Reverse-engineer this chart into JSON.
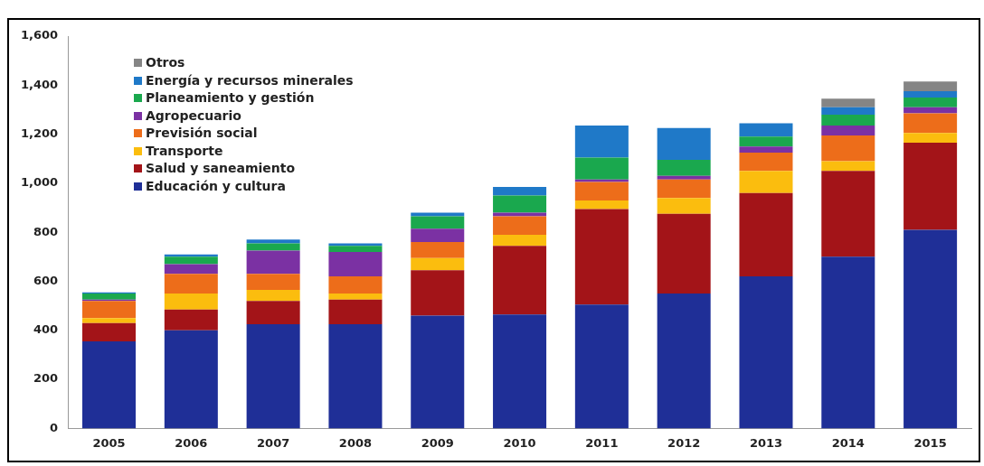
{
  "chart_data": {
    "type": "bar",
    "stacked": true,
    "categories": [
      "2005",
      "2006",
      "2007",
      "2008",
      "2009",
      "2010",
      "2011",
      "2012",
      "2013",
      "2014",
      "2015"
    ],
    "series": [
      {
        "name": "Educación y cultura",
        "color": "#1f2f97",
        "values": [
          355,
          400,
          425,
          425,
          460,
          465,
          505,
          550,
          620,
          700,
          810
        ]
      },
      {
        "name": "Salud y saneamiento",
        "color": "#a31418",
        "values": [
          75,
          85,
          95,
          100,
          185,
          280,
          390,
          325,
          340,
          350,
          355
        ]
      },
      {
        "name": "Transporte",
        "color": "#fbbd0e",
        "values": [
          20,
          65,
          45,
          25,
          50,
          45,
          35,
          65,
          90,
          40,
          40
        ]
      },
      {
        "name": "Previsión social",
        "color": "#ed6d1a",
        "values": [
          70,
          80,
          65,
          70,
          65,
          75,
          75,
          75,
          75,
          105,
          80
        ]
      },
      {
        "name": "Agropecuario",
        "color": "#7b31a3",
        "values": [
          5,
          40,
          95,
          100,
          55,
          15,
          10,
          15,
          25,
          40,
          25
        ]
      },
      {
        "name": "Planeamiento y gestión",
        "color": "#1aa84e",
        "values": [
          25,
          30,
          30,
          25,
          50,
          70,
          90,
          65,
          40,
          45,
          40
        ]
      },
      {
        "name": "Energía y recursos minerales",
        "color": "#1f79c8",
        "values": [
          5,
          10,
          15,
          10,
          15,
          35,
          130,
          130,
          55,
          30,
          25
        ]
      },
      {
        "name": "Otros",
        "color": "#858585",
        "values": [
          null,
          null,
          null,
          null,
          null,
          null,
          null,
          null,
          null,
          35,
          40
        ]
      }
    ],
    "ylim": [
      0,
      1600
    ],
    "yticks": [
      0,
      200,
      400,
      600,
      800,
      {
        "value": 1000,
        "label": "1,000"
      },
      {
        "value": 1200,
        "label": "1,200"
      },
      {
        "value": 1400,
        "label": "1,400"
      },
      {
        "value": 1600,
        "label": "1,600"
      }
    ],
    "grid": false,
    "legend": "top left"
  }
}
